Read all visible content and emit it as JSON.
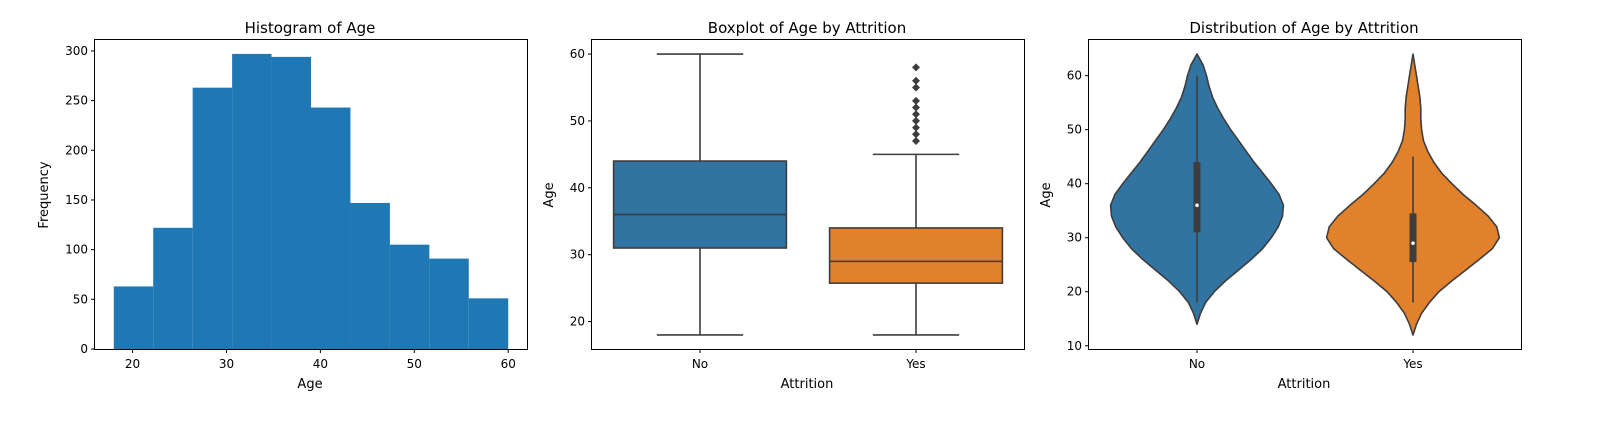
{
  "chart_data": [
    {
      "type": "bar",
      "subtype": "histogram",
      "title": "Histogram of Age",
      "xlabel": "Age",
      "ylabel": "Frequency",
      "color": "#1f77b4",
      "bin_edges": [
        18,
        22.2,
        26.4,
        30.6,
        34.8,
        39.0,
        43.2,
        47.4,
        51.6,
        55.8,
        60
      ],
      "values": [
        63,
        122,
        263,
        297,
        294,
        243,
        147,
        105,
        91,
        51
      ],
      "xlim": [
        16,
        62
      ],
      "ylim": [
        0,
        311
      ],
      "xticks": [
        20,
        30,
        40,
        50,
        60
      ],
      "xtick_labels": [
        "20",
        "30",
        "40",
        "50",
        "60"
      ],
      "yticks": [
        0,
        50,
        100,
        150,
        200,
        250,
        300
      ],
      "ytick_labels": [
        "0",
        "50",
        "100",
        "150",
        "200",
        "250",
        "300"
      ]
    },
    {
      "type": "box",
      "title": "Boxplot of Age by Attrition",
      "xlabel": "Attrition",
      "ylabel": "Age",
      "categories": [
        "No",
        "Yes"
      ],
      "colors": [
        "#3274a1",
        "#e1812c"
      ],
      "boxes": [
        {
          "name": "No",
          "whisker_low": 18,
          "q1": 31,
          "median": 36,
          "q3": 44,
          "whisker_high": 60,
          "outliers": []
        },
        {
          "name": "Yes",
          "whisker_low": 18,
          "q1": 25.75,
          "median": 29,
          "q3": 34,
          "whisker_high": 45,
          "outliers": [
            47,
            48,
            49,
            50,
            51,
            52,
            53,
            55,
            56,
            58
          ]
        }
      ],
      "ylim": [
        15.9,
        62.1
      ],
      "yticks": [
        20,
        30,
        40,
        50,
        60
      ],
      "ytick_labels": [
        "20",
        "30",
        "40",
        "50",
        "60"
      ]
    },
    {
      "type": "violin",
      "title": "Distribution of Age by Attrition",
      "xlabel": "Attrition",
      "ylabel": "Age",
      "categories": [
        "No",
        "Yes"
      ],
      "colors": [
        "#3274a1",
        "#e1812c"
      ],
      "violins": [
        {
          "name": "No",
          "min": 18,
          "q1": 31,
          "median": 36,
          "q3": 44,
          "max": 60,
          "profile": [
            [
              14,
              0.0
            ],
            [
              16,
              0.04
            ],
            [
              18,
              0.1
            ],
            [
              20,
              0.2
            ],
            [
              22,
              0.33
            ],
            [
              24,
              0.48
            ],
            [
              26,
              0.63
            ],
            [
              28,
              0.76
            ],
            [
              30,
              0.86
            ],
            [
              32,
              0.94
            ],
            [
              34,
              0.99
            ],
            [
              36,
              1.0
            ],
            [
              38,
              0.95
            ],
            [
              40,
              0.86
            ],
            [
              42,
              0.76
            ],
            [
              44,
              0.66
            ],
            [
              46,
              0.57
            ],
            [
              48,
              0.48
            ],
            [
              50,
              0.39
            ],
            [
              52,
              0.31
            ],
            [
              54,
              0.24
            ],
            [
              56,
              0.18
            ],
            [
              58,
              0.14
            ],
            [
              60,
              0.11
            ],
            [
              62,
              0.07
            ],
            [
              64,
              0.0
            ]
          ]
        },
        {
          "name": "Yes",
          "min": 18,
          "q1": 25.5,
          "median": 29,
          "q3": 34.5,
          "max": 45,
          "profile": [
            [
              12,
              0.0
            ],
            [
              14,
              0.04
            ],
            [
              16,
              0.1
            ],
            [
              18,
              0.19
            ],
            [
              20,
              0.3
            ],
            [
              22,
              0.45
            ],
            [
              24,
              0.61
            ],
            [
              26,
              0.77
            ],
            [
              28,
              0.92
            ],
            [
              30,
              1.0
            ],
            [
              32,
              0.97
            ],
            [
              34,
              0.87
            ],
            [
              36,
              0.73
            ],
            [
              38,
              0.58
            ],
            [
              40,
              0.45
            ],
            [
              42,
              0.33
            ],
            [
              44,
              0.24
            ],
            [
              46,
              0.17
            ],
            [
              48,
              0.12
            ],
            [
              50,
              0.1
            ],
            [
              52,
              0.09
            ],
            [
              54,
              0.09
            ],
            [
              56,
              0.08
            ],
            [
              58,
              0.06
            ],
            [
              60,
              0.04
            ],
            [
              62,
              0.02
            ],
            [
              64,
              0.0
            ]
          ]
        }
      ],
      "ylim": [
        9.4,
        66.6
      ],
      "yticks": [
        10,
        20,
        30,
        40,
        50,
        60
      ],
      "ytick_labels": [
        "10",
        "20",
        "30",
        "40",
        "50",
        "60"
      ]
    }
  ]
}
